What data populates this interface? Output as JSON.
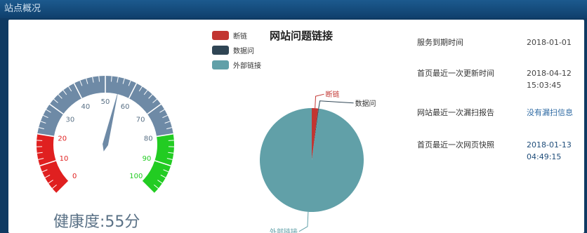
{
  "window": {
    "title": "站点概况"
  },
  "gauge": {
    "value": 55,
    "min": 0,
    "max": 100,
    "ticks": [
      "0",
      "10",
      "20",
      "30",
      "40",
      "50",
      "60",
      "70",
      "80",
      "90",
      "100"
    ],
    "segments": [
      {
        "from": 0,
        "to": 20,
        "color": "#e02020"
      },
      {
        "from": 20,
        "to": 80,
        "color": "#6e8aa6"
      },
      {
        "from": 80,
        "to": 100,
        "color": "#22cc22"
      }
    ],
    "health_label": "健康度:55分"
  },
  "chart_data": {
    "type": "pie",
    "title": "网站问题链接",
    "categories": [
      "断链",
      "数据问",
      "外部链接"
    ],
    "values": [
      2,
      0.2,
      97.8
    ],
    "colors": [
      "#c23531",
      "#2f4554",
      "#61a0a8"
    ],
    "legend": "top-left"
  },
  "info": [
    {
      "label": "服务到期时间",
      "value": "2018-01-01",
      "style": "plain"
    },
    {
      "label": "首页最近一次更新时间",
      "value": "2018-04-12\n15:03:45",
      "style": "plain"
    },
    {
      "label": "网站最近一次漏扫报告",
      "value": "没有漏扫信息",
      "style": "link"
    },
    {
      "label": "首页最近一次网页快照",
      "value": "2018-01-13\n04:49:15",
      "style": "dark"
    }
  ]
}
